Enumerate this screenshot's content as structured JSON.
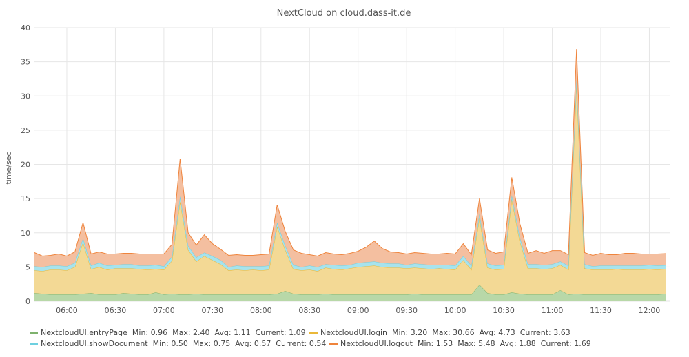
{
  "chart_data": {
    "type": "area",
    "stacked": true,
    "title": "NextCloud on cloud.dass-it.de",
    "ylabel": "time/sec",
    "xlabel": "",
    "ylim": [
      0,
      40
    ],
    "yticks": [
      0,
      5,
      10,
      15,
      20,
      25,
      30,
      35,
      40
    ],
    "xlim": [
      "05:40",
      "12:13"
    ],
    "xticks": [
      "06:00",
      "06:30",
      "07:00",
      "07:30",
      "08:00",
      "08:30",
      "09:00",
      "09:30",
      "10:00",
      "10:30",
      "11:00",
      "11:30",
      "12:00"
    ],
    "grid": true,
    "legend_position": "bottom",
    "x": [
      "05:40",
      "05:45",
      "05:50",
      "05:55",
      "06:00",
      "06:05",
      "06:10",
      "06:15",
      "06:20",
      "06:25",
      "06:30",
      "06:35",
      "06:40",
      "06:45",
      "06:50",
      "06:55",
      "07:00",
      "07:05",
      "07:10",
      "07:15",
      "07:20",
      "07:25",
      "07:30",
      "07:35",
      "07:40",
      "07:45",
      "07:50",
      "07:55",
      "08:00",
      "08:05",
      "08:10",
      "08:15",
      "08:20",
      "08:25",
      "08:30",
      "08:35",
      "08:40",
      "08:45",
      "08:50",
      "08:55",
      "09:00",
      "09:05",
      "09:10",
      "09:15",
      "09:20",
      "09:25",
      "09:30",
      "09:35",
      "09:40",
      "09:45",
      "09:50",
      "09:55",
      "10:00",
      "10:05",
      "10:10",
      "10:15",
      "10:20",
      "10:25",
      "10:30",
      "10:35",
      "10:40",
      "10:45",
      "10:50",
      "10:55",
      "11:00",
      "11:05",
      "11:10",
      "11:15",
      "11:20",
      "11:25",
      "11:30",
      "11:35",
      "11:40",
      "11:45",
      "11:50",
      "11:55",
      "12:00",
      "12:05",
      "12:10"
    ],
    "series": [
      {
        "name": "NextcloudUI.entryPage",
        "color": "#7eb26d",
        "fill": "#b8d8a8",
        "values": [
          1.2,
          1.1,
          1.0,
          1.0,
          1.0,
          1.0,
          1.1,
          1.2,
          1.0,
          1.0,
          1.0,
          1.2,
          1.1,
          1.0,
          1.0,
          1.3,
          1.0,
          1.1,
          1.0,
          1.0,
          1.1,
          1.0,
          1.0,
          1.0,
          1.0,
          1.0,
          1.0,
          1.0,
          1.0,
          1.0,
          1.1,
          1.5,
          1.1,
          1.0,
          1.0,
          1.0,
          1.1,
          1.0,
          1.0,
          1.0,
          1.0,
          1.0,
          1.0,
          1.0,
          1.0,
          1.0,
          1.0,
          1.1,
          1.0,
          1.0,
          1.0,
          1.0,
          1.0,
          1.0,
          1.0,
          2.4,
          1.2,
          1.0,
          1.0,
          1.3,
          1.1,
          1.0,
          1.0,
          1.0,
          1.0,
          1.6,
          1.0,
          1.1,
          1.0,
          1.0,
          1.0,
          1.0,
          1.0,
          1.0,
          1.0,
          1.0,
          1.0,
          1.0,
          1.09
        ]
      },
      {
        "name": "NextcloudUI.login",
        "color": "#eab839",
        "fill": "#f3d995",
        "values": [
          3.3,
          3.3,
          3.6,
          3.6,
          3.5,
          4.0,
          7.5,
          3.5,
          4.0,
          3.6,
          3.8,
          3.6,
          3.7,
          3.7,
          3.6,
          3.4,
          3.6,
          4.8,
          13.6,
          6.5,
          4.7,
          5.6,
          5.0,
          4.4,
          3.5,
          3.6,
          3.5,
          3.6,
          3.5,
          3.6,
          9.8,
          6.0,
          3.6,
          3.5,
          3.6,
          3.4,
          3.8,
          3.7,
          3.6,
          3.8,
          4.0,
          4.1,
          4.2,
          4.0,
          3.9,
          3.9,
          3.8,
          3.8,
          3.8,
          3.7,
          3.8,
          3.7,
          3.6,
          5.0,
          3.6,
          9.8,
          3.7,
          3.6,
          3.7,
          13.6,
          7.6,
          3.8,
          3.8,
          3.7,
          3.8,
          3.7,
          3.6,
          30.66,
          3.8,
          3.6,
          3.6,
          3.6,
          3.7,
          3.6,
          3.6,
          3.6,
          3.7,
          3.6,
          3.63
        ]
      },
      {
        "name": "NextcloudUI.showDocument",
        "color": "#6ed0e0",
        "fill": "#a7e3ed",
        "values": [
          0.6,
          0.6,
          0.6,
          0.6,
          0.6,
          0.6,
          0.6,
          0.5,
          0.6,
          0.6,
          0.5,
          0.6,
          0.6,
          0.5,
          0.6,
          0.6,
          0.5,
          0.6,
          0.75,
          0.6,
          0.6,
          0.5,
          0.6,
          0.6,
          0.5,
          0.6,
          0.6,
          0.5,
          0.6,
          0.6,
          0.6,
          0.6,
          0.6,
          0.5,
          0.6,
          0.6,
          0.5,
          0.6,
          0.6,
          0.5,
          0.6,
          0.6,
          0.6,
          0.6,
          0.6,
          0.6,
          0.5,
          0.6,
          0.6,
          0.6,
          0.5,
          0.6,
          0.6,
          0.6,
          0.6,
          0.6,
          0.6,
          0.6,
          0.6,
          0.6,
          0.6,
          0.6,
          0.6,
          0.6,
          0.6,
          0.5,
          0.6,
          0.6,
          0.6,
          0.5,
          0.6,
          0.6,
          0.5,
          0.6,
          0.6,
          0.6,
          0.6,
          0.6,
          0.54
        ]
      },
      {
        "name": "NextcloudUI.logout",
        "color": "#ef843c",
        "fill": "#f4bfa0",
        "values": [
          2.0,
          1.6,
          1.5,
          1.7,
          1.5,
          1.6,
          2.3,
          1.7,
          1.6,
          1.7,
          1.6,
          1.6,
          1.6,
          1.7,
          1.7,
          1.6,
          1.8,
          1.8,
          5.48,
          1.9,
          1.8,
          2.6,
          1.8,
          1.6,
          1.7,
          1.6,
          1.6,
          1.6,
          1.7,
          1.7,
          2.6,
          2.1,
          2.2,
          2.0,
          1.6,
          1.6,
          1.7,
          1.6,
          1.6,
          1.7,
          1.7,
          2.2,
          3.0,
          2.1,
          1.7,
          1.6,
          1.6,
          1.6,
          1.6,
          1.6,
          1.6,
          1.7,
          1.7,
          1.8,
          1.6,
          2.2,
          2.0,
          1.8,
          1.9,
          2.6,
          2.0,
          1.6,
          2.0,
          1.7,
          2.0,
          1.6,
          1.6,
          4.5,
          1.7,
          1.6,
          1.8,
          1.6,
          1.6,
          1.8,
          1.8,
          1.7,
          1.6,
          1.7,
          1.69
        ]
      }
    ]
  },
  "legend": [
    {
      "name": "NextcloudUI.entryPage",
      "color": "#7eb26d",
      "stats": "Min: 0.96  Max: 2.40  Avg: 1.11  Current: 1.09"
    },
    {
      "name": "NextcloudUI.login",
      "color": "#eab839",
      "stats": "Min: 3.20  Max: 30.66  Avg: 4.73  Current: 3.63"
    },
    {
      "name": "NextcloudUI.showDocument",
      "color": "#6ed0e0",
      "stats": "Min: 0.50  Max: 0.75  Avg: 0.57  Current: 0.54"
    },
    {
      "name": "NextcloudUI.logout",
      "color": "#ef843c",
      "stats": "Min: 1.53  Max: 5.48  Avg: 1.88  Current: 1.69"
    }
  ]
}
